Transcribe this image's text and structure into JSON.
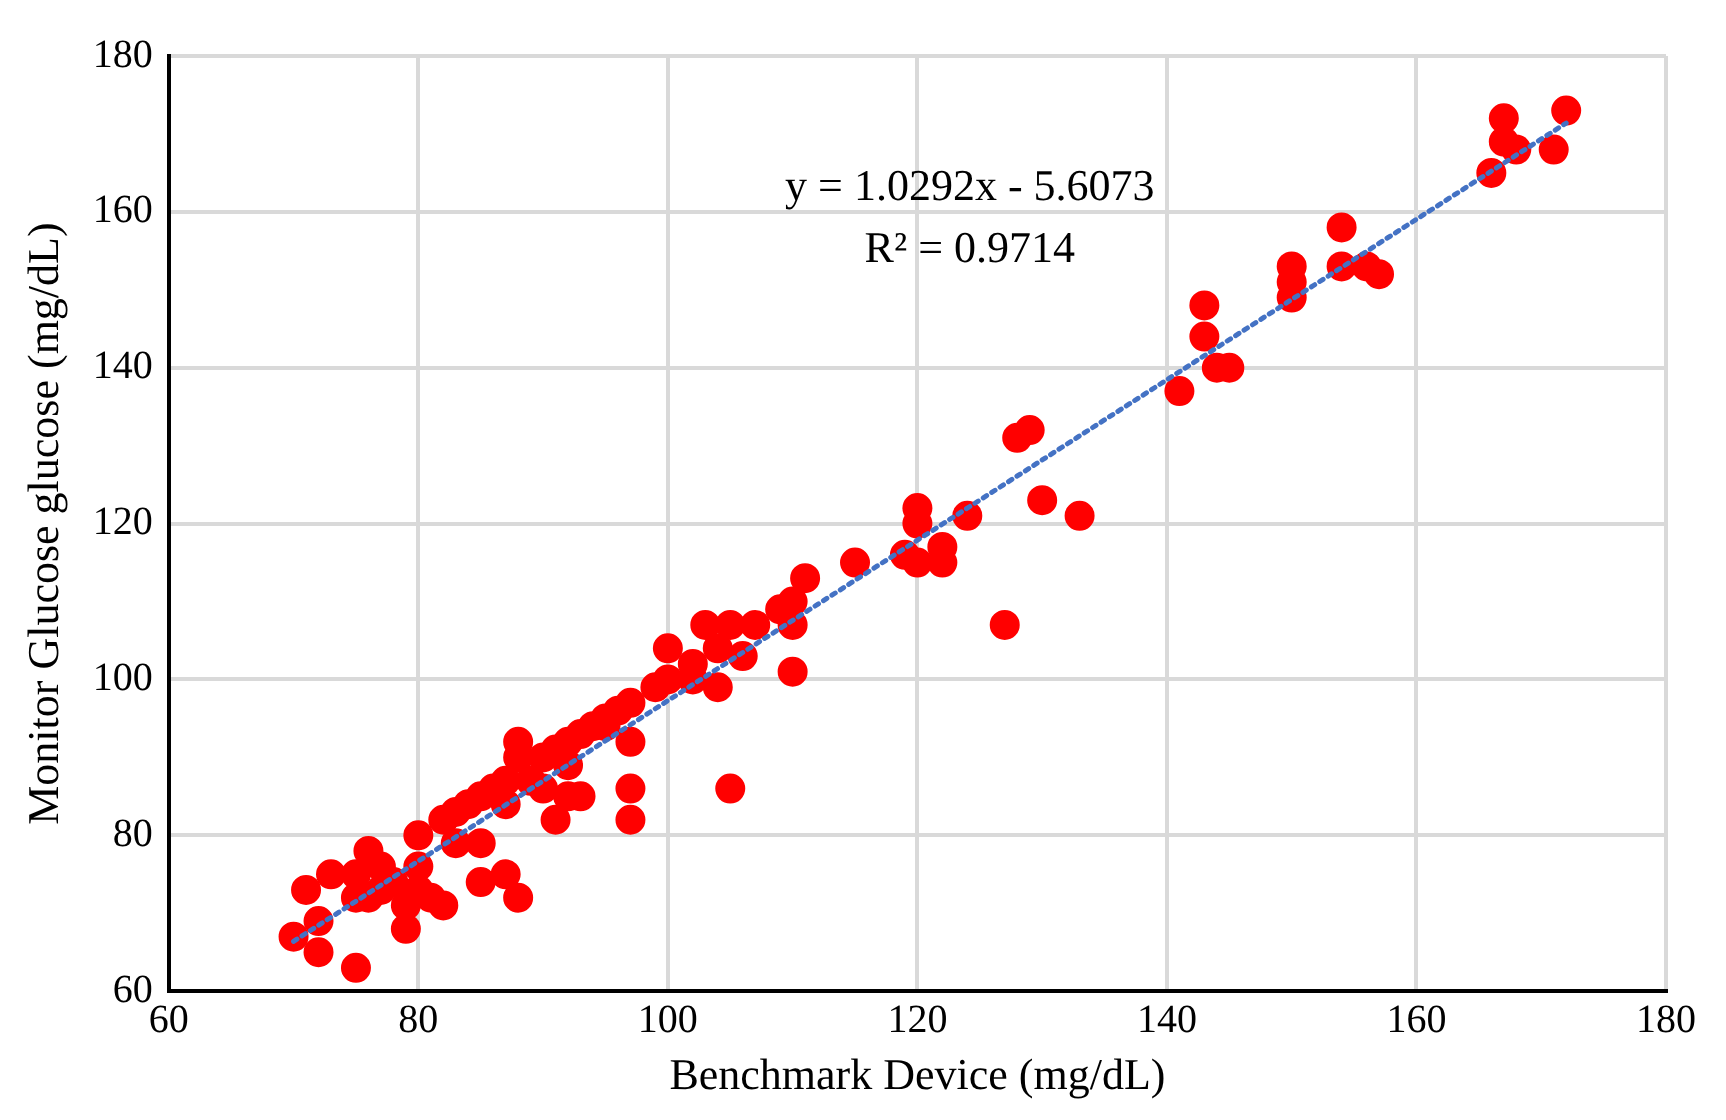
{
  "chart_data": {
    "type": "scatter",
    "xlabel": "Benchmark Device (mg/dL)",
    "ylabel": "Monitor Glucose glucose (mg/dL)",
    "xlim": [
      60,
      180
    ],
    "xticks": [
      60,
      80,
      100,
      120,
      140,
      160,
      180
    ],
    "ylim": [
      60,
      180
    ],
    "yticks": [
      60,
      80,
      100,
      120,
      140,
      160,
      180
    ],
    "grid": true,
    "marker": "circle",
    "annotations": [
      "y = 1.0292x - 5.6073",
      "R² = 0.9714"
    ],
    "series": [
      {
        "color": "#ff0000",
        "x": [
          70,
          71,
          72,
          72,
          73,
          75,
          75,
          75,
          76,
          76,
          77,
          77,
          78,
          79,
          79,
          80,
          80,
          80,
          81,
          82,
          82,
          83,
          83,
          84,
          85,
          85,
          85,
          86,
          87,
          87,
          87,
          88,
          88,
          88,
          89,
          90,
          90,
          91,
          91,
          92,
          92,
          92,
          93,
          93,
          94,
          95,
          95,
          96,
          97,
          97,
          97,
          97,
          99,
          100,
          100,
          102,
          102,
          103,
          104,
          104,
          105,
          105,
          106,
          107,
          109,
          110,
          110,
          110,
          111,
          115,
          119,
          120,
          120,
          120,
          122,
          122,
          124,
          127,
          128,
          129,
          130,
          133,
          141,
          143,
          143,
          144,
          145,
          150,
          150,
          150,
          154,
          154,
          156,
          157,
          166,
          167,
          167,
          168,
          171,
          172
        ],
        "values": [
          67,
          73,
          69,
          65,
          75,
          63,
          75,
          72,
          78,
          72,
          76,
          73,
          74,
          71,
          68,
          80,
          73,
          76,
          72,
          71,
          82,
          83,
          79,
          84,
          85,
          79,
          74,
          86,
          75,
          84,
          87,
          92,
          90,
          72,
          87,
          90,
          86,
          91,
          82,
          92,
          89,
          85,
          93,
          85,
          94,
          95,
          94,
          96,
          97,
          92,
          86,
          82,
          99,
          100,
          104,
          102,
          100,
          107,
          99,
          104,
          107,
          86,
          103,
          107,
          109,
          110,
          107,
          101,
          113,
          115,
          116,
          122,
          120,
          115,
          117,
          115,
          121,
          107,
          131,
          132,
          123,
          121,
          137,
          148,
          144,
          140,
          140,
          153,
          151,
          149,
          158,
          153,
          153,
          152,
          165,
          172,
          169,
          168,
          168,
          173
        ]
      },
      {
        "type": "line",
        "color": "#4472c4",
        "line_style": "dotted",
        "marker": "none",
        "x": [
          70,
          172
        ],
        "values": [
          66.4,
          171.4
        ]
      }
    ]
  }
}
